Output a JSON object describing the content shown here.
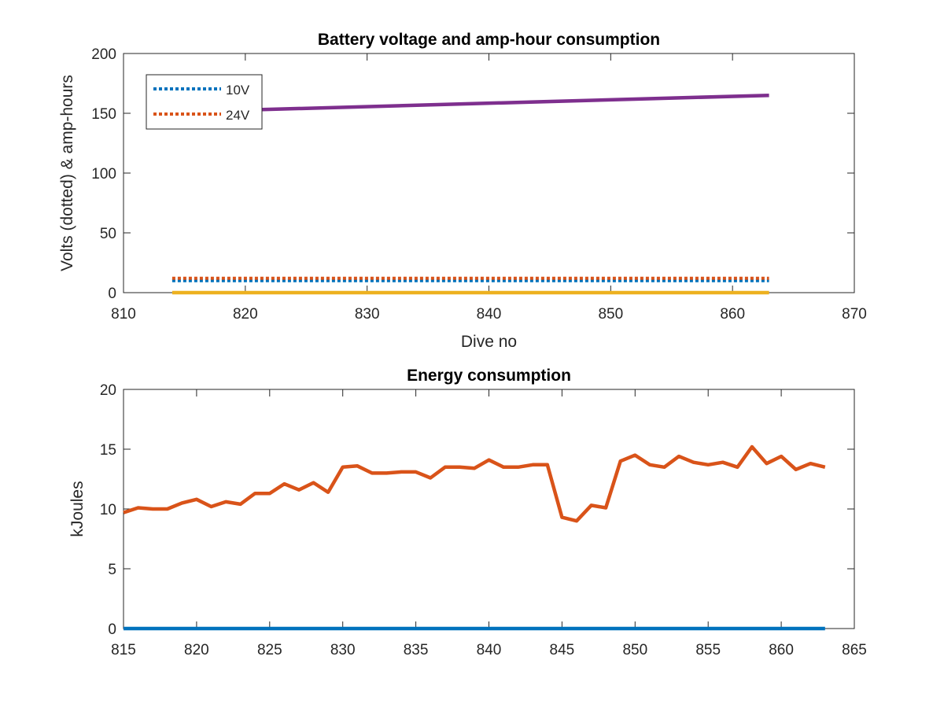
{
  "chart_data": [
    {
      "type": "line",
      "title": "Battery voltage and amp-hour consumption",
      "xlabel": "Dive no",
      "ylabel": "Volts (dotted) & amp-hours",
      "xlim": [
        810,
        870
      ],
      "ylim": [
        0,
        200
      ],
      "xticks": [
        "810",
        "820",
        "830",
        "840",
        "850",
        "860",
        "870"
      ],
      "yticks": [
        "0",
        "50",
        "100",
        "150",
        "200"
      ],
      "legend_position": "top-left",
      "series": [
        {
          "name": "10V",
          "style": "dotted",
          "color": "#0072BD",
          "x": [
            814,
            863
          ],
          "y": [
            10,
            10
          ]
        },
        {
          "name": "24V",
          "style": "dotted",
          "color": "#D95319",
          "x": [
            814,
            863
          ],
          "y": [
            12,
            12
          ]
        },
        {
          "style": "solid",
          "color": "#7E2F8E",
          "x": [
            814,
            863
          ],
          "y": [
            151,
            165
          ]
        },
        {
          "style": "solid",
          "color": "#EDB120",
          "x": [
            814,
            863
          ],
          "y": [
            0,
            0
          ]
        }
      ]
    },
    {
      "type": "line",
      "title": "Energy consumption",
      "xlabel": "",
      "ylabel": "kJoules",
      "xlim": [
        815,
        865
      ],
      "ylim": [
        0,
        20
      ],
      "xticks": [
        "815",
        "820",
        "825",
        "830",
        "835",
        "840",
        "845",
        "850",
        "855",
        "860",
        "865"
      ],
      "yticks": [
        "0",
        "5",
        "10",
        "15",
        "20"
      ],
      "series": [
        {
          "style": "solid",
          "color": "#0072BD",
          "x": [
            815,
            863
          ],
          "y": [
            0,
            0
          ]
        },
        {
          "style": "solid",
          "color": "#D95319",
          "x": [
            815,
            816,
            817,
            818,
            819,
            820,
            821,
            822,
            823,
            824,
            825,
            826,
            827,
            828,
            829,
            830,
            831,
            832,
            833,
            834,
            835,
            836,
            837,
            838,
            839,
            840,
            841,
            842,
            843,
            844,
            845,
            846,
            847,
            848,
            849,
            850,
            851,
            852,
            853,
            854,
            855,
            856,
            857,
            858,
            859,
            860,
            861,
            862,
            863
          ],
          "y": [
            9.7,
            10.1,
            10.0,
            10.0,
            10.5,
            10.8,
            10.2,
            10.6,
            10.4,
            11.3,
            11.3,
            12.1,
            11.6,
            12.2,
            11.4,
            13.5,
            13.6,
            13.0,
            13.0,
            13.1,
            13.1,
            12.6,
            13.5,
            13.5,
            13.4,
            14.1,
            13.5,
            13.5,
            13.7,
            13.7,
            9.3,
            9.0,
            10.3,
            10.1,
            14.0,
            14.5,
            13.7,
            13.5,
            14.4,
            13.9,
            13.7,
            13.9,
            13.5,
            15.2,
            13.8,
            14.4,
            13.3,
            13.8,
            13.5
          ]
        }
      ]
    }
  ]
}
